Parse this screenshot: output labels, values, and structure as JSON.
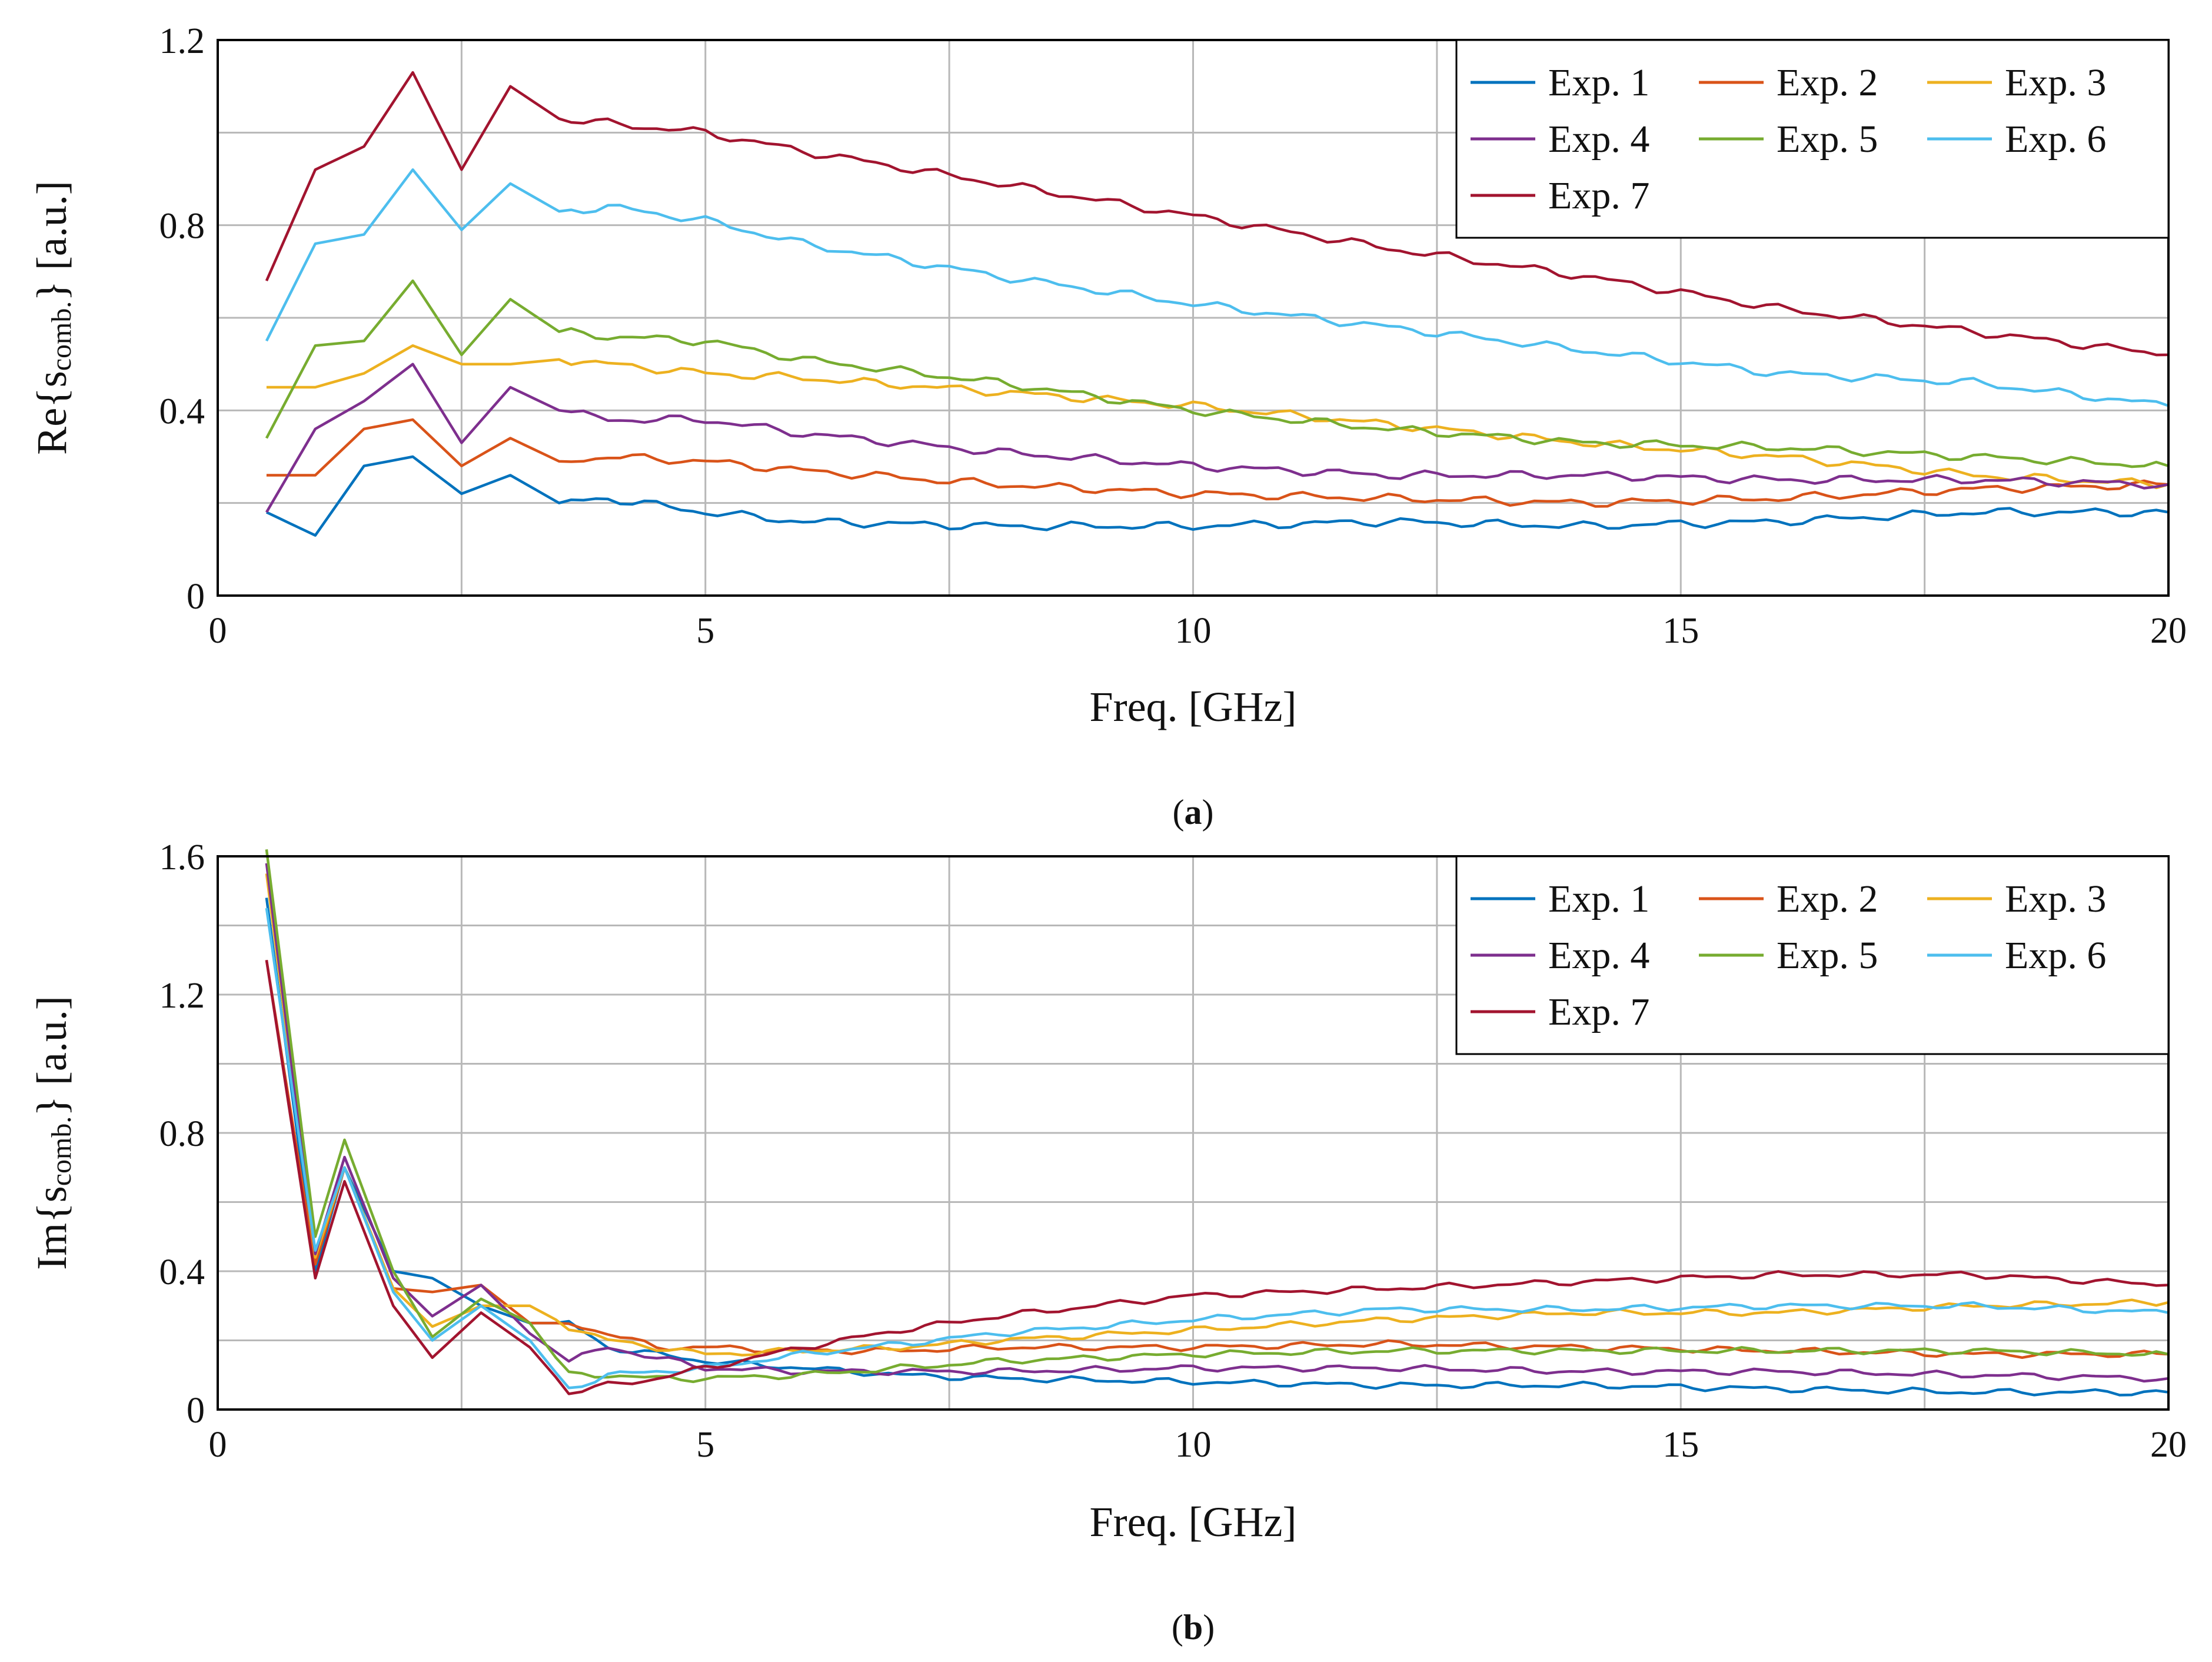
{
  "chart_data": [
    {
      "type": "line",
      "caption_letter": "a",
      "xlabel": "Freq. [GHz]",
      "ylabel": {
        "prefix": "Re{s",
        "sub": "comb.",
        "suffix": "} [a.u.]"
      },
      "xlim": [
        0,
        20
      ],
      "ylim": [
        0,
        1.2
      ],
      "xticks": [
        0,
        5,
        10,
        15,
        20
      ],
      "xtick_labels": [
        "0",
        "5",
        "10",
        "15",
        "20"
      ],
      "yticks": [
        0,
        0.4,
        0.8,
        1.2
      ],
      "ytick_labels": [
        "0",
        "0.4",
        "0.8",
        "1.2"
      ],
      "grid": true,
      "legend": {
        "position": "top-right",
        "columns": 3
      },
      "x": [
        0.5,
        1,
        1.5,
        2,
        2.5,
        3,
        3.5,
        4,
        5,
        6,
        8,
        10,
        12,
        14,
        16,
        18,
        20
      ],
      "series": [
        {
          "name": "Exp. 1",
          "color": "#0072BD",
          "values": [
            0.18,
            0.13,
            0.28,
            0.3,
            0.22,
            0.26,
            0.2,
            0.21,
            0.18,
            0.16,
            0.15,
            0.15,
            0.16,
            0.15,
            0.16,
            0.18,
            0.18
          ]
        },
        {
          "name": "Exp. 2",
          "color": "#D95319",
          "values": [
            0.26,
            0.26,
            0.36,
            0.38,
            0.28,
            0.34,
            0.29,
            0.3,
            0.29,
            0.27,
            0.24,
            0.22,
            0.21,
            0.2,
            0.21,
            0.23,
            0.24
          ]
        },
        {
          "name": "Exp. 3",
          "color": "#EDB120",
          "values": [
            0.45,
            0.45,
            0.48,
            0.54,
            0.5,
            0.5,
            0.51,
            0.5,
            0.48,
            0.47,
            0.44,
            0.41,
            0.37,
            0.33,
            0.3,
            0.26,
            0.24
          ]
        },
        {
          "name": "Exp. 4",
          "color": "#7E2F8E",
          "values": [
            0.18,
            0.36,
            0.42,
            0.5,
            0.33,
            0.45,
            0.4,
            0.38,
            0.38,
            0.35,
            0.31,
            0.28,
            0.26,
            0.26,
            0.25,
            0.25,
            0.24
          ]
        },
        {
          "name": "Exp. 5",
          "color": "#77AC30",
          "values": [
            0.34,
            0.54,
            0.55,
            0.68,
            0.52,
            0.64,
            0.57,
            0.56,
            0.55,
            0.51,
            0.46,
            0.4,
            0.36,
            0.33,
            0.32,
            0.3,
            0.28
          ]
        },
        {
          "name": "Exp. 6",
          "color": "#4DBEEE",
          "values": [
            0.55,
            0.76,
            0.78,
            0.92,
            0.79,
            0.89,
            0.83,
            0.84,
            0.81,
            0.76,
            0.69,
            0.63,
            0.58,
            0.53,
            0.48,
            0.46,
            0.41
          ]
        },
        {
          "name": "Exp. 7",
          "color": "#A2142F",
          "values": [
            0.68,
            0.92,
            0.97,
            1.13,
            0.92,
            1.1,
            1.03,
            1.02,
            1.0,
            0.96,
            0.89,
            0.82,
            0.75,
            0.69,
            0.62,
            0.57,
            0.52
          ]
        }
      ]
    },
    {
      "type": "line",
      "caption_letter": "b",
      "xlabel": "Freq. [GHz]",
      "ylabel": {
        "prefix": "Im{s",
        "sub": "comb.",
        "suffix": "} [a.u.]"
      },
      "xlim": [
        0,
        20
      ],
      "ylim": [
        0,
        1.6
      ],
      "xticks": [
        0,
        5,
        10,
        15,
        20
      ],
      "xtick_labels": [
        "0",
        "5",
        "10",
        "15",
        "20"
      ],
      "yticks": [
        0,
        0.4,
        0.8,
        1.2,
        1.6
      ],
      "ytick_labels": [
        "0",
        "0.4",
        "0.8",
        "1.2",
        "1.6"
      ],
      "grid": true,
      "legend": {
        "position": "top-right",
        "columns": 3
      },
      "x": [
        0.5,
        1,
        1.3,
        1.8,
        2.2,
        2.7,
        3.2,
        3.6,
        4,
        4.5,
        5,
        6,
        7,
        8,
        10,
        12,
        14,
        16,
        18,
        20
      ],
      "series": [
        {
          "name": "Exp. 1",
          "color": "#0072BD",
          "values": [
            1.48,
            0.4,
            0.7,
            0.4,
            0.38,
            0.3,
            0.25,
            0.25,
            0.18,
            0.16,
            0.14,
            0.12,
            0.1,
            0.09,
            0.08,
            0.07,
            0.07,
            0.06,
            0.05,
            0.05
          ]
        },
        {
          "name": "Exp. 2",
          "color": "#D95319",
          "values": [
            1.3,
            0.42,
            0.7,
            0.35,
            0.34,
            0.36,
            0.25,
            0.25,
            0.22,
            0.18,
            0.18,
            0.17,
            0.17,
            0.18,
            0.18,
            0.19,
            0.18,
            0.17,
            0.16,
            0.16
          ]
        },
        {
          "name": "Exp. 3",
          "color": "#EDB120",
          "values": [
            1.55,
            0.44,
            0.7,
            0.35,
            0.24,
            0.3,
            0.3,
            0.24,
            0.2,
            0.18,
            0.16,
            0.17,
            0.18,
            0.2,
            0.23,
            0.26,
            0.28,
            0.28,
            0.3,
            0.31
          ]
        },
        {
          "name": "Exp. 4",
          "color": "#7E2F8E",
          "values": [
            1.58,
            0.45,
            0.73,
            0.38,
            0.27,
            0.36,
            0.22,
            0.14,
            0.18,
            0.15,
            0.12,
            0.11,
            0.11,
            0.11,
            0.12,
            0.12,
            0.11,
            0.11,
            0.1,
            0.09
          ]
        },
        {
          "name": "Exp. 5",
          "color": "#77AC30",
          "values": [
            1.62,
            0.5,
            0.78,
            0.4,
            0.21,
            0.32,
            0.25,
            0.1,
            0.1,
            0.09,
            0.09,
            0.1,
            0.12,
            0.14,
            0.16,
            0.17,
            0.17,
            0.17,
            0.17,
            0.16
          ]
        },
        {
          "name": "Exp. 6",
          "color": "#4DBEEE",
          "values": [
            1.45,
            0.46,
            0.7,
            0.34,
            0.2,
            0.3,
            0.2,
            0.06,
            0.1,
            0.11,
            0.12,
            0.16,
            0.19,
            0.22,
            0.26,
            0.29,
            0.29,
            0.3,
            0.3,
            0.28
          ]
        },
        {
          "name": "Exp. 7",
          "color": "#A2142F",
          "values": [
            1.3,
            0.38,
            0.66,
            0.3,
            0.15,
            0.28,
            0.18,
            0.05,
            0.07,
            0.09,
            0.12,
            0.18,
            0.23,
            0.27,
            0.33,
            0.35,
            0.37,
            0.39,
            0.39,
            0.36
          ]
        }
      ]
    }
  ]
}
